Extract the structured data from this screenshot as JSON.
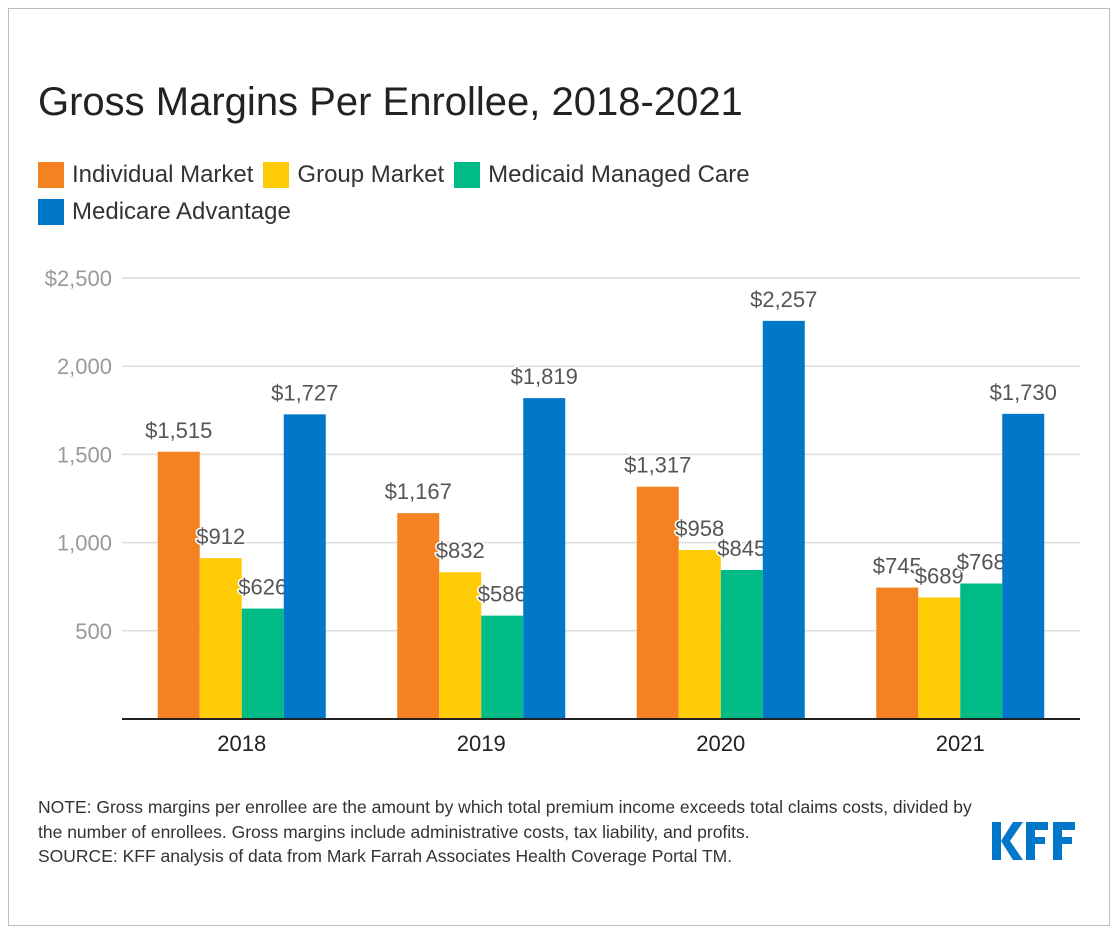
{
  "chart_data": {
    "type": "bar",
    "title": "Gross Margins Per Enrollee, 2018-2021",
    "categories": [
      "2018",
      "2019",
      "2020",
      "2021"
    ],
    "series": [
      {
        "name": "Individual Market",
        "color": "#f58220",
        "values": [
          1515,
          1167,
          1317,
          745
        ],
        "labels": [
          "$1,515",
          "$1,167",
          "$1,317",
          "$745"
        ]
      },
      {
        "name": "Group Market",
        "color": "#ffcb05",
        "values": [
          912,
          832,
          958,
          689
        ],
        "labels": [
          "$912",
          "$832",
          "$958",
          "$689"
        ]
      },
      {
        "name": "Medicaid Managed Care",
        "color": "#00bb85",
        "values": [
          626,
          586,
          845,
          768
        ],
        "labels": [
          "$626",
          "$586",
          "$845",
          "$768"
        ]
      },
      {
        "name": "Medicare Advantage",
        "color": "#0077c8",
        "values": [
          1727,
          1819,
          2257,
          1730
        ],
        "labels": [
          "$1,727",
          "$1,819",
          "$2,257",
          "$1,730"
        ]
      }
    ],
    "yticks": [
      500,
      1000,
      1500,
      2000,
      2500
    ],
    "ytick_labels": [
      "500",
      "1,000",
      "1,500",
      "2,000",
      "$2,500"
    ],
    "ylim": [
      0,
      2500
    ],
    "xlabel": "",
    "ylabel": "",
    "grid": true,
    "legend_position": "top-left"
  },
  "footer": {
    "note": "NOTE: Gross margins per enrollee are the amount by which total premium income exceeds total claims costs, divided by the number of enrollees. Gross margins include administrative costs, tax liability, and profits.",
    "source": "SOURCE: KFF analysis of data from Mark Farrah Associates Health Coverage Portal TM.",
    "logo": "KFF"
  }
}
